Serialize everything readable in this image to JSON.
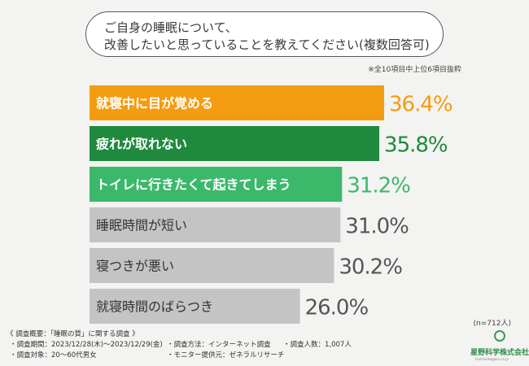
{
  "question": {
    "line1": "ご自身の睡眠について、",
    "line2": "改善したいと思っていることを教えてください(複数回答可)"
  },
  "note": "※全10項目中上位6項目抜粋",
  "sample_size": "(n=712人)",
  "footer": {
    "title": "《 調査概要：「睡眠の質」に関する調査 》",
    "period": "・調査期間：2023/12/28(木)〜2023/12/29(金)",
    "method": "・調査方法：インターネット調査",
    "count": "・調査人数：1,007人",
    "target": "・調査対象：20〜60代男女",
    "provider": "・モニター提供元：ゼネラルリサーチ"
  },
  "logo": {
    "name": "星野科学株式会社",
    "sub": "hoshinokagaku.co.jp"
  },
  "colors": {
    "bar_orange": "#f39c12",
    "bar_dark_green": "#1f8a3e",
    "bar_green": "#3cb86a",
    "bar_gray": "#c4c4c4",
    "value_orange": "#f39c12",
    "value_dark_green": "#1f8a3e",
    "value_green": "#3cb86a",
    "value_gray": "#555555"
  },
  "chart_data": {
    "type": "bar",
    "orientation": "horizontal",
    "categories": [
      "就寝中に目が覚める",
      "疲れが取れない",
      "トイレに行きたくて起きてしまう",
      "睡眠時間が短い",
      "寝つきが悪い",
      "就寝時間のばらつき"
    ],
    "values": [
      36.4,
      35.8,
      31.2,
      31.0,
      30.2,
      26.0
    ],
    "value_labels": [
      "36.4%",
      "35.8%",
      "31.2%",
      "31.0%",
      "30.2%",
      "26.0%"
    ],
    "bar_colors": [
      "#f39c12",
      "#1f8a3e",
      "#3cb86a",
      "#c4c4c4",
      "#c4c4c4",
      "#c4c4c4"
    ],
    "label_colors": [
      "#f39c12",
      "#1f8a3e",
      "#3cb86a",
      "#555555",
      "#555555",
      "#555555"
    ],
    "xlim": [
      0,
      36.4
    ],
    "grid": false,
    "legend": "none"
  }
}
